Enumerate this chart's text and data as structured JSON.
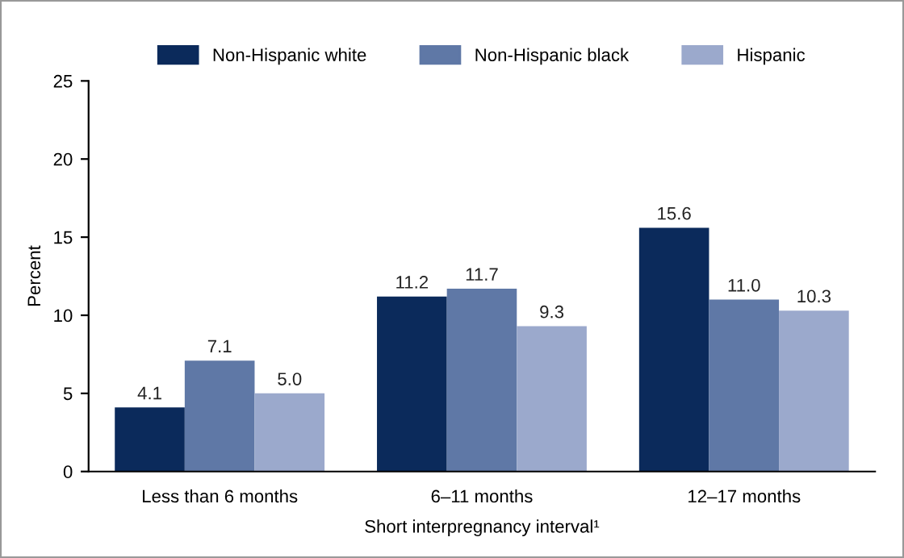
{
  "chart_data": {
    "type": "bar",
    "xlabel": "Short interpregnancy interval¹",
    "ylabel": "Percent",
    "categories": [
      "Less than 6 months",
      "6–11 months",
      "12–17 months"
    ],
    "series": [
      {
        "name": "Non-Hispanic white",
        "color": "#0b2a5b",
        "values": [
          4.1,
          11.2,
          15.6
        ],
        "value_labels": [
          "4.1",
          "11.2",
          "15.6"
        ]
      },
      {
        "name": "Non-Hispanic black",
        "color": "#5f78a6",
        "values": [
          7.1,
          11.7,
          11.0
        ],
        "value_labels": [
          "7.1",
          "11.7",
          "11.0"
        ]
      },
      {
        "name": "Hispanic",
        "color": "#9ba9cc",
        "values": [
          5.0,
          9.3,
          10.3
        ],
        "value_labels": [
          "5.0",
          "9.3",
          "10.3"
        ]
      }
    ],
    "ylim": [
      0,
      25
    ],
    "yticks": [
      0,
      5,
      10,
      15,
      20,
      25
    ],
    "legend": "top",
    "grid": false
  }
}
